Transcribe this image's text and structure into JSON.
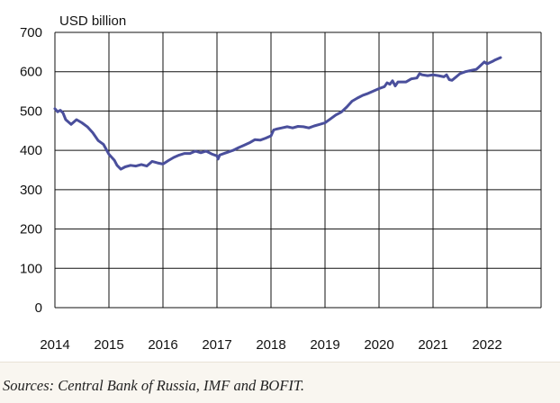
{
  "chart_data": {
    "type": "line",
    "unit_label": "USD billion",
    "xlabel": "",
    "ylabel": "",
    "xlim": [
      2014,
      2023
    ],
    "ylim": [
      0,
      700
    ],
    "x_ticks": [
      "2014",
      "2015",
      "2016",
      "2017",
      "2018",
      "2019",
      "2020",
      "2021",
      "2022"
    ],
    "y_ticks": [
      "0",
      "100",
      "200",
      "300",
      "400",
      "500",
      "600",
      "700"
    ],
    "grid": true,
    "series": [
      {
        "color": "#4a4f9c",
        "points": [
          [
            2014.0,
            506
          ],
          [
            2014.05,
            498
          ],
          [
            2014.1,
            502
          ],
          [
            2014.15,
            495
          ],
          [
            2014.2,
            478
          ],
          [
            2014.3,
            466
          ],
          [
            2014.4,
            478
          ],
          [
            2014.5,
            470
          ],
          [
            2014.6,
            460
          ],
          [
            2014.7,
            445
          ],
          [
            2014.8,
            425
          ],
          [
            2014.9,
            415
          ],
          [
            2015.0,
            390
          ],
          [
            2015.1,
            375
          ],
          [
            2015.15,
            362
          ],
          [
            2015.22,
            352
          ],
          [
            2015.3,
            358
          ],
          [
            2015.4,
            362
          ],
          [
            2015.5,
            360
          ],
          [
            2015.6,
            364
          ],
          [
            2015.7,
            360
          ],
          [
            2015.8,
            372
          ],
          [
            2015.9,
            368
          ],
          [
            2016.0,
            365
          ],
          [
            2016.1,
            374
          ],
          [
            2016.2,
            382
          ],
          [
            2016.3,
            388
          ],
          [
            2016.4,
            392
          ],
          [
            2016.5,
            392
          ],
          [
            2016.6,
            398
          ],
          [
            2016.7,
            394
          ],
          [
            2016.8,
            398
          ],
          [
            2016.9,
            391
          ],
          [
            2017.0,
            386
          ],
          [
            2017.02,
            378
          ],
          [
            2017.05,
            388
          ],
          [
            2017.15,
            393
          ],
          [
            2017.3,
            400
          ],
          [
            2017.4,
            407
          ],
          [
            2017.5,
            413
          ],
          [
            2017.6,
            419
          ],
          [
            2017.7,
            427
          ],
          [
            2017.8,
            426
          ],
          [
            2017.9,
            431
          ],
          [
            2018.0,
            437
          ],
          [
            2018.05,
            452
          ],
          [
            2018.1,
            454
          ],
          [
            2018.2,
            457
          ],
          [
            2018.3,
            460
          ],
          [
            2018.4,
            457
          ],
          [
            2018.5,
            461
          ],
          [
            2018.6,
            460
          ],
          [
            2018.7,
            457
          ],
          [
            2018.8,
            462
          ],
          [
            2018.9,
            466
          ],
          [
            2019.0,
            470
          ],
          [
            2019.1,
            480
          ],
          [
            2019.2,
            490
          ],
          [
            2019.3,
            497
          ],
          [
            2019.4,
            510
          ],
          [
            2019.5,
            525
          ],
          [
            2019.6,
            533
          ],
          [
            2019.7,
            540
          ],
          [
            2019.8,
            545
          ],
          [
            2019.9,
            551
          ],
          [
            2020.0,
            557
          ],
          [
            2020.1,
            562
          ],
          [
            2020.15,
            572
          ],
          [
            2020.2,
            568
          ],
          [
            2020.25,
            577
          ],
          [
            2020.3,
            564
          ],
          [
            2020.35,
            574
          ],
          [
            2020.5,
            574
          ],
          [
            2020.6,
            582
          ],
          [
            2020.7,
            584
          ],
          [
            2020.75,
            595
          ],
          [
            2020.8,
            592
          ],
          [
            2020.9,
            590
          ],
          [
            2021.0,
            592
          ],
          [
            2021.1,
            590
          ],
          [
            2021.2,
            587
          ],
          [
            2021.25,
            592
          ],
          [
            2021.3,
            580
          ],
          [
            2021.35,
            578
          ],
          [
            2021.5,
            595
          ],
          [
            2021.6,
            600
          ],
          [
            2021.7,
            603
          ],
          [
            2021.8,
            606
          ],
          [
            2021.85,
            612
          ],
          [
            2021.95,
            625
          ],
          [
            2022.0,
            620
          ],
          [
            2022.1,
            626
          ],
          [
            2022.15,
            630
          ],
          [
            2022.25,
            636
          ]
        ]
      }
    ]
  },
  "source": "Sources: Central Bank of Russia, IMF and BOFIT."
}
